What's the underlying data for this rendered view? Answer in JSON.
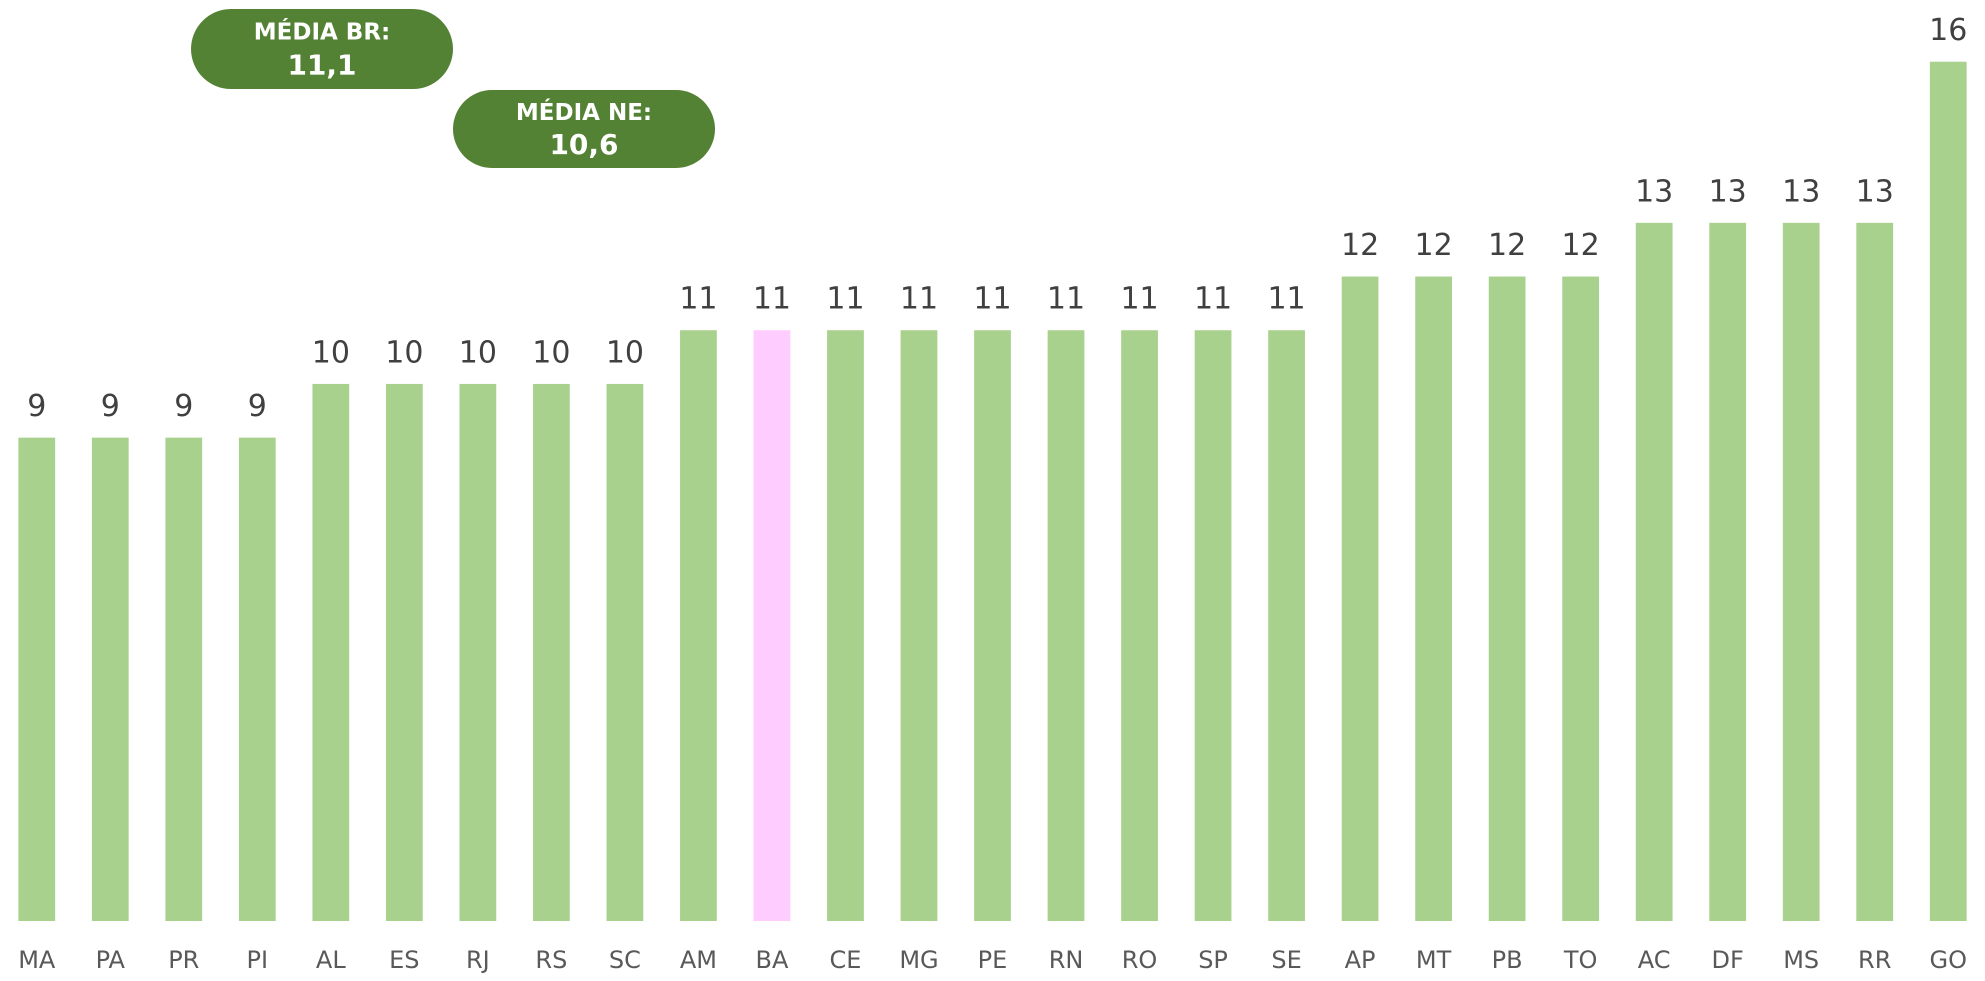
{
  "chart_data": {
    "type": "bar",
    "categories": [
      "MA",
      "PA",
      "PR",
      "PI",
      "AL",
      "ES",
      "RJ",
      "RS",
      "SC",
      "AM",
      "BA",
      "CE",
      "MG",
      "PE",
      "RN",
      "RO",
      "SP",
      "SE",
      "AP",
      "MT",
      "PB",
      "TO",
      "AC",
      "DF",
      "MS",
      "RR",
      "GO"
    ],
    "values": [
      9,
      9,
      9,
      9,
      10,
      10,
      10,
      10,
      10,
      11,
      11,
      11,
      11,
      11,
      11,
      11,
      11,
      11,
      12,
      12,
      12,
      12,
      13,
      13,
      13,
      13,
      16
    ],
    "colors": [
      "#a9d18e",
      "#a9d18e",
      "#a9d18e",
      "#a9d18e",
      "#a9d18e",
      "#a9d18e",
      "#a9d18e",
      "#a9d18e",
      "#a9d18e",
      "#a9d18e",
      "#ffccff",
      "#a9d18e",
      "#a9d18e",
      "#a9d18e",
      "#a9d18e",
      "#a9d18e",
      "#a9d18e",
      "#a9d18e",
      "#a9d18e",
      "#a9d18e",
      "#a9d18e",
      "#a9d18e",
      "#a9d18e",
      "#a9d18e",
      "#a9d18e",
      "#a9d18e",
      "#a9d18e"
    ],
    "ylim": [
      0,
      17
    ],
    "annotations": [
      {
        "title": "MÉDIA BR:",
        "text": "11,1",
        "color": "#548235"
      },
      {
        "title": "MÉDIA NE:",
        "text": "10,6",
        "color": "#548235"
      }
    ]
  }
}
